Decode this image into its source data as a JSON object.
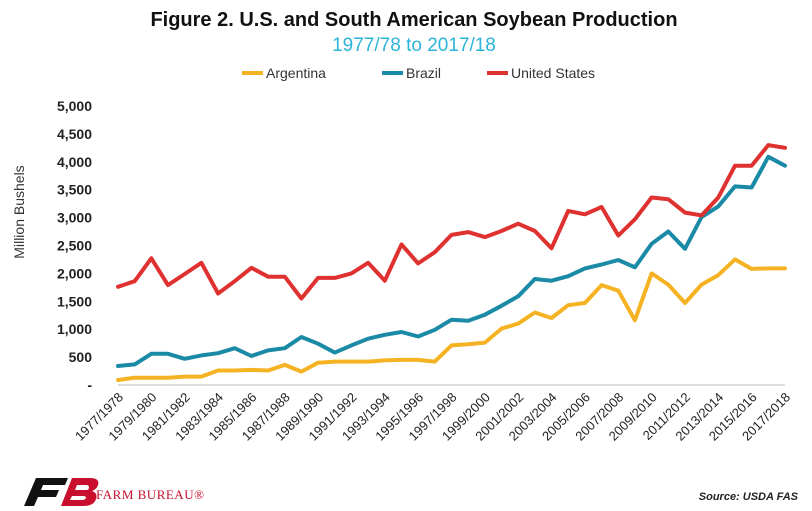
{
  "chart_data": {
    "type": "line",
    "title": "Figure 2. U.S. and South American Soybean Production",
    "subtitle": "1977/78 to 2017/18",
    "ylabel": "Million Bushels",
    "xlabel": "",
    "ylim": [
      0,
      5000
    ],
    "yticks": [
      "-",
      "500",
      "1,000",
      "1,500",
      "2,000",
      "2,500",
      "3,000",
      "3,500",
      "4,000",
      "4,500",
      "5,000"
    ],
    "legend_position": "top-center",
    "grid": false,
    "x": [
      "1977/1978",
      "1978/1979",
      "1979/1980",
      "1980/1981",
      "1981/1982",
      "1982/1983",
      "1983/1984",
      "1984/1985",
      "1985/1986",
      "1986/1987",
      "1987/1988",
      "1988/1989",
      "1989/1990",
      "1990/1991",
      "1991/1992",
      "1992/1993",
      "1993/1994",
      "1994/1995",
      "1995/1996",
      "1996/1997",
      "1997/1998",
      "1998/1999",
      "1999/2000",
      "2000/2001",
      "2001/2002",
      "2002/2003",
      "2003/2004",
      "2004/2005",
      "2005/2006",
      "2006/2007",
      "2007/2008",
      "2008/2009",
      "2009/2010",
      "2010/2011",
      "2011/2012",
      "2012/2013",
      "2013/2014",
      "2014/2015",
      "2015/2016",
      "2016/2017",
      "2017/2018"
    ],
    "xtick_labels": [
      "1977/1978",
      "1979/1980",
      "1981/1982",
      "1983/1984",
      "1985/1986",
      "1987/1988",
      "1989/1990",
      "1991/1992",
      "1993/1994",
      "1995/1996",
      "1997/1998",
      "1999/2000",
      "2001/2002",
      "2003/2004",
      "2005/2006",
      "2007/2008",
      "2009/2010",
      "2011/2012",
      "2013/2014",
      "2015/2016",
      "2017/2018"
    ],
    "series": [
      {
        "name": "Argentina",
        "color": "#f5b323",
        "values": [
          90,
          130,
          130,
          130,
          150,
          150,
          260,
          260,
          270,
          260,
          360,
          240,
          400,
          420,
          420,
          420,
          440,
          450,
          450,
          420,
          710,
          730,
          760,
          1010,
          1100,
          1300,
          1200,
          1430,
          1470,
          1790,
          1690,
          1160,
          2000,
          1800,
          1470,
          1800,
          1970,
          2250,
          2080,
          2090,
          2090
        ]
      },
      {
        "name": "Brazil",
        "color": "#1a8aa6",
        "values": [
          340,
          370,
          560,
          560,
          470,
          530,
          570,
          660,
          520,
          620,
          660,
          860,
          740,
          580,
          710,
          830,
          900,
          950,
          870,
          990,
          1170,
          1150,
          1260,
          1420,
          1590,
          1900,
          1870,
          1950,
          2090,
          2160,
          2240,
          2110,
          2530,
          2750,
          2440,
          3010,
          3200,
          3560,
          3540,
          4090,
          3930
        ]
      },
      {
        "name": "United States",
        "color": "#e03131",
        "values": [
          1760,
          1860,
          2270,
          1790,
          1990,
          2190,
          1640,
          1860,
          2100,
          1940,
          1940,
          1550,
          1920,
          1920,
          2000,
          2190,
          1870,
          2520,
          2180,
          2380,
          2690,
          2740,
          2650,
          2760,
          2890,
          2760,
          2450,
          3120,
          3060,
          3190,
          2680,
          2970,
          3360,
          3330,
          3090,
          3040,
          3360,
          3930,
          3930,
          4300,
          4250
        ]
      }
    ]
  },
  "footer": {
    "brand": "FARM BUREAU®",
    "source": "Source: USDA FAS"
  }
}
